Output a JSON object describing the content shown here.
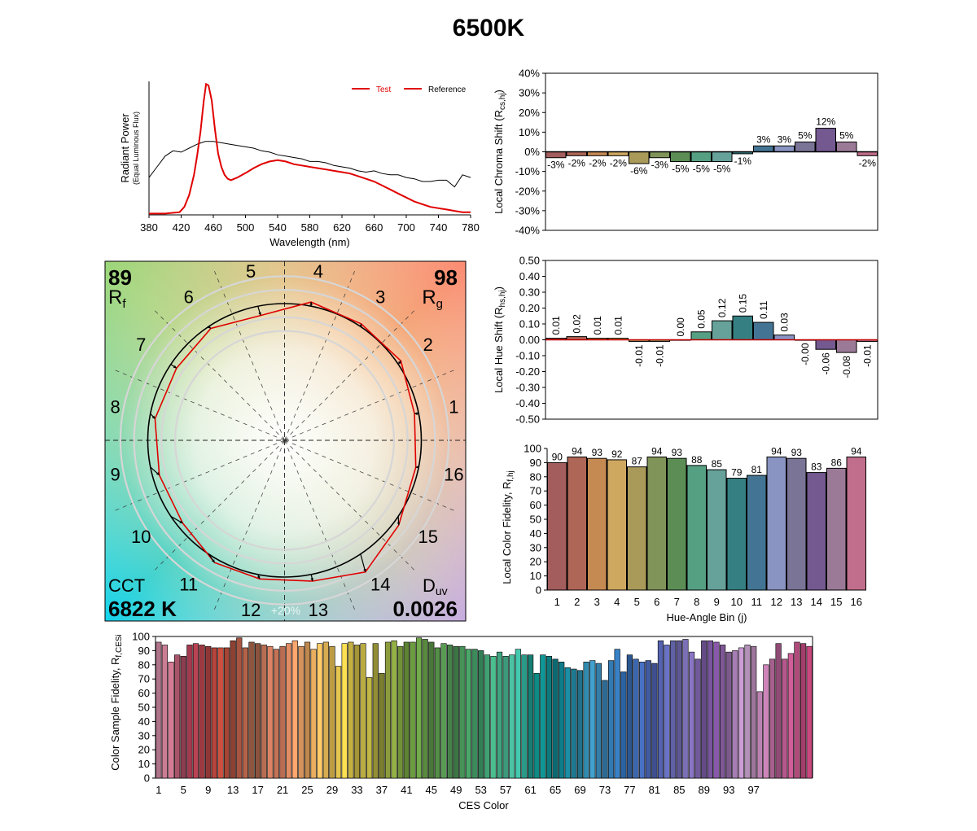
{
  "title": "6500K",
  "colors": {
    "test_line": "#e00000",
    "reference_line": "#000000",
    "axis": "#000000",
    "grid_circle": "#d6d6d6"
  },
  "chart_data": [
    {
      "id": "spd",
      "type": "line",
      "title": "",
      "xlabel": "Wavelength (nm)",
      "ylabel": "Radiant Power",
      "ylabel_sub": "(Equal Luminous Flux)",
      "xlim": [
        380,
        780
      ],
      "ylim": [
        0,
        1
      ],
      "xticks": [
        "380",
        "420",
        "460",
        "500",
        "540",
        "580",
        "620",
        "660",
        "700",
        "740",
        "780"
      ],
      "legend_position": "top-right",
      "series": [
        {
          "name": "Test",
          "color": "#e00000",
          "x": [
            380,
            400,
            418,
            424,
            430,
            436,
            440,
            444,
            448,
            451,
            454,
            458,
            462,
            466,
            470,
            474,
            478,
            482,
            486,
            490,
            496,
            502,
            510,
            520,
            530,
            540,
            550,
            560,
            570,
            580,
            590,
            600,
            610,
            620,
            630,
            640,
            650,
            660,
            670,
            680,
            690,
            700,
            710,
            720,
            730,
            740,
            750,
            760,
            770,
            780
          ],
          "y": [
            0.01,
            0.01,
            0.02,
            0.06,
            0.15,
            0.3,
            0.45,
            0.62,
            0.85,
            0.98,
            0.97,
            0.86,
            0.64,
            0.46,
            0.36,
            0.3,
            0.27,
            0.26,
            0.27,
            0.28,
            0.3,
            0.32,
            0.35,
            0.38,
            0.4,
            0.41,
            0.4,
            0.38,
            0.37,
            0.36,
            0.35,
            0.34,
            0.33,
            0.32,
            0.31,
            0.29,
            0.27,
            0.25,
            0.22,
            0.19,
            0.16,
            0.13,
            0.1,
            0.08,
            0.06,
            0.05,
            0.04,
            0.03,
            0.02,
            0.02
          ]
        },
        {
          "name": "Reference",
          "color": "#000000",
          "x": [
            380,
            390,
            400,
            410,
            420,
            430,
            440,
            450,
            460,
            470,
            480,
            490,
            500,
            510,
            520,
            530,
            540,
            550,
            560,
            570,
            580,
            590,
            600,
            610,
            620,
            630,
            640,
            650,
            660,
            670,
            680,
            690,
            700,
            710,
            720,
            730,
            740,
            750,
            760,
            770,
            780
          ],
          "y": [
            0.28,
            0.36,
            0.44,
            0.48,
            0.47,
            0.5,
            0.53,
            0.55,
            0.55,
            0.54,
            0.53,
            0.52,
            0.51,
            0.5,
            0.48,
            0.47,
            0.45,
            0.44,
            0.43,
            0.42,
            0.4,
            0.4,
            0.39,
            0.37,
            0.36,
            0.35,
            0.33,
            0.32,
            0.33,
            0.31,
            0.3,
            0.3,
            0.28,
            0.27,
            0.25,
            0.25,
            0.26,
            0.26,
            0.21,
            0.3,
            0.28
          ]
        }
      ]
    },
    {
      "id": "chroma-shift",
      "type": "bar",
      "title": "",
      "ylabel": "Local Chroma Shift (R",
      "ylabel_sub": "cs,hj",
      "ylabel_end": ")",
      "ylim": [
        -40,
        40
      ],
      "yticks": [
        "40%",
        "30%",
        "20%",
        "10%",
        "0%",
        "-10%",
        "-20%",
        "-30%",
        "-40%"
      ],
      "categories": [
        "1",
        "2",
        "3",
        "4",
        "5",
        "6",
        "7",
        "8",
        "9",
        "10",
        "11",
        "12",
        "13",
        "14",
        "15",
        "16"
      ],
      "values": [
        -3,
        -2,
        -2,
        -2,
        -6,
        -3,
        -5,
        -5,
        -5,
        -1,
        3,
        3,
        5,
        12,
        5,
        -2
      ],
      "labels": [
        "-3%",
        "-2%",
        "-2%",
        "-2%",
        "-6%",
        "-3%",
        "-5%",
        "-5%",
        "-5%",
        "-1%",
        "3%",
        "3%",
        "5%",
        "12%",
        "5%",
        "-2%"
      ]
    },
    {
      "id": "hue-shift",
      "type": "bar",
      "title": "",
      "ylabel": "Local Hue Shift (R",
      "ylabel_sub": "hs,hj",
      "ylabel_end": ")",
      "ylim": [
        -0.5,
        0.5
      ],
      "yticks": [
        "0.50",
        "0.40",
        "0.30",
        "0.20",
        "0.10",
        "0.00",
        "-0.10",
        "-0.20",
        "-0.30",
        "-0.40",
        "-0.50"
      ],
      "categories": [
        "1",
        "2",
        "3",
        "4",
        "5",
        "6",
        "7",
        "8",
        "9",
        "10",
        "11",
        "12",
        "13",
        "14",
        "15",
        "16"
      ],
      "values": [
        0.01,
        0.02,
        0.01,
        0.01,
        -0.01,
        -0.01,
        0.0,
        0.05,
        0.12,
        0.15,
        0.11,
        0.03,
        -0.0,
        -0.06,
        -0.08,
        -0.01
      ],
      "labels": [
        "0.01",
        "0.02",
        "0.01",
        "0.01",
        "-0.01",
        "-0.01",
        "0.00",
        "0.05",
        "0.12",
        "0.15",
        "0.11",
        "0.03",
        "-0.00",
        "-0.06",
        "-0.08",
        "-0.01"
      ]
    },
    {
      "id": "local-fidelity",
      "type": "bar",
      "title": "",
      "xlabel": "Hue-Angle Bin (j)",
      "ylabel": "Local Color Fidelity, R",
      "ylabel_sub": "f,hj",
      "ylim": [
        0,
        100
      ],
      "yticks": [
        "100",
        "90",
        "80",
        "70",
        "60",
        "50",
        "40",
        "30",
        "20",
        "10",
        "0"
      ],
      "categories": [
        "1",
        "2",
        "3",
        "4",
        "5",
        "6",
        "7",
        "8",
        "9",
        "10",
        "11",
        "12",
        "13",
        "14",
        "15",
        "16"
      ],
      "values": [
        90,
        94,
        93,
        92,
        87,
        94,
        93,
        88,
        85,
        79,
        81,
        94,
        93,
        83,
        86,
        94
      ]
    },
    {
      "id": "ces-fidelity",
      "type": "bar",
      "title": "",
      "xlabel": "CES Color",
      "ylabel": "Color Sample Fidelity, R",
      "ylabel_sub": "f,CESi",
      "ylim": [
        0,
        100
      ],
      "yticks": [
        "100",
        "90",
        "80",
        "70",
        "60",
        "50",
        "40",
        "30",
        "20",
        "10",
        "0"
      ],
      "xticks": [
        "1",
        "5",
        "9",
        "13",
        "17",
        "21",
        "25",
        "29",
        "33",
        "37",
        "41",
        "45",
        "49",
        "53",
        "57",
        "61",
        "65",
        "69",
        "73",
        "77",
        "81",
        "85",
        "89",
        "93",
        "97"
      ],
      "values": [
        96,
        94,
        82,
        87,
        86,
        94,
        95,
        94,
        93,
        92,
        92,
        92,
        97,
        99,
        92,
        96,
        95,
        94,
        93,
        91,
        93,
        95,
        97,
        93,
        96,
        91,
        95,
        96,
        93,
        79,
        95,
        96,
        94,
        95,
        71,
        95,
        74,
        96,
        97,
        93,
        96,
        96,
        99,
        98,
        96,
        92,
        95,
        94,
        93,
        93,
        91,
        91,
        90,
        87,
        86,
        89,
        86,
        87,
        91,
        87,
        87,
        74,
        87,
        86,
        84,
        82,
        78,
        77,
        76,
        82,
        83,
        81,
        69,
        83,
        91,
        75,
        87,
        84,
        82,
        83,
        81,
        97,
        94,
        97,
        97,
        98,
        89,
        84,
        97,
        97,
        96,
        94,
        89,
        90,
        92,
        94,
        93,
        61,
        80,
        84,
        95,
        84,
        88,
        96,
        95,
        93
      ]
    },
    {
      "id": "vector-graphic",
      "type": "polar",
      "title": "",
      "rf_value": "89",
      "rf_label": "R",
      "rf_sub": "f",
      "rg_value": "98",
      "rg_label": "R",
      "rg_sub": "g",
      "cct_label": "CCT",
      "cct_value": "6822 K",
      "duv_label": "D",
      "duv_sub": "uv",
      "duv_value": "0.0026",
      "ring_label": "+20%",
      "bins": [
        "1",
        "2",
        "3",
        "4",
        "5",
        "6",
        "7",
        "8",
        "9",
        "10",
        "11",
        "12",
        "13",
        "14",
        "15",
        "16"
      ],
      "test_radius_ratio": [
        0.97,
        1.03,
        1.02,
        1.03,
        0.93,
        0.98,
        0.95,
        0.96,
        0.95,
        0.96,
        1.03,
        1.03,
        1.05,
        1.13,
        1.04,
        0.98
      ],
      "hue_shift_deg": [
        0.4,
        0.6,
        0.4,
        0.4,
        -0.4,
        -0.4,
        0.0,
        1.8,
        4.3,
        5.4,
        4.0,
        1.1,
        0.0,
        -2.2,
        -2.9,
        -0.4
      ]
    }
  ]
}
